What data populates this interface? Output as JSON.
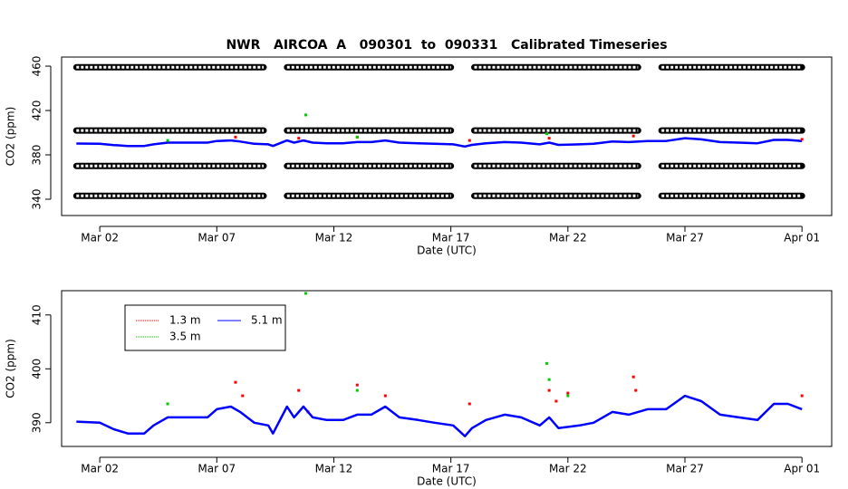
{
  "chart_data": [
    {
      "type": "line",
      "title": "NWR   AIRCOA  A   090301  to  090331   Calibrated Timeseries",
      "x_label": "Date (UTC)",
      "y_label": "CO2 (ppm)",
      "xlim": [
        0.37,
        33.27
      ],
      "ylim": [
        325.3,
        468.2
      ],
      "xticks": [
        {
          "value": 2,
          "label": "Mar 02"
        },
        {
          "value": 7,
          "label": "Mar 07"
        },
        {
          "value": 12,
          "label": "Mar 12"
        },
        {
          "value": 17,
          "label": "Mar 17"
        },
        {
          "value": 22,
          "label": "Mar 22"
        },
        {
          "value": 27,
          "label": "Mar 27"
        },
        {
          "value": 32,
          "label": "Apr 01"
        }
      ],
      "yticks": [
        340,
        380,
        420,
        460
      ],
      "series": [
        {
          "color": "#000000",
          "marker": "circles",
          "x": [
            1,
            2,
            3,
            4,
            5,
            6,
            7,
            8,
            9,
            9.5,
            10,
            11,
            12,
            13,
            14,
            15,
            16,
            17,
            17.5,
            18,
            19,
            20,
            21,
            22,
            23,
            24,
            25,
            25.5,
            26,
            27,
            28,
            29,
            30,
            31,
            32
          ],
          "values": [
            459,
            459,
            459,
            459,
            459,
            459,
            459,
            459,
            459,
            null,
            459,
            459,
            459,
            459,
            459,
            459,
            459,
            459,
            null,
            459,
            459,
            459,
            459,
            459,
            459,
            459,
            459,
            null,
            459,
            459,
            459,
            459,
            459,
            459,
            459
          ]
        },
        {
          "color": "#000000",
          "marker": "circles",
          "x": [
            1,
            2,
            3,
            4,
            5,
            6,
            7,
            8,
            9,
            9.5,
            10,
            11,
            12,
            13,
            14,
            15,
            16,
            17,
            17.5,
            18,
            19,
            20,
            21,
            22,
            23,
            24,
            25,
            25.5,
            26,
            27,
            28,
            29,
            30,
            31,
            32
          ],
          "values": [
            402,
            402,
            402,
            402,
            402,
            402,
            402,
            402,
            402,
            null,
            402,
            402,
            402,
            402,
            402,
            402,
            402,
            402,
            null,
            402,
            402,
            402,
            402,
            402,
            402,
            402,
            402,
            null,
            402,
            402,
            402,
            402,
            402,
            402,
            402
          ]
        },
        {
          "color": "#000000",
          "marker": "circles",
          "x": [
            1,
            2,
            3,
            4,
            5,
            6,
            7,
            8,
            9,
            9.5,
            10,
            11,
            12,
            13,
            14,
            15,
            16,
            17,
            17.5,
            18,
            19,
            20,
            21,
            22,
            23,
            24,
            25,
            25.5,
            26,
            27,
            28,
            29,
            30,
            31,
            32
          ],
          "values": [
            370,
            370,
            370,
            370,
            370,
            370,
            370,
            370,
            370,
            null,
            370,
            370,
            370,
            370,
            370,
            370,
            370,
            370,
            null,
            370,
            370,
            370,
            370,
            370,
            370,
            370,
            370,
            null,
            370,
            370,
            370,
            370,
            370,
            370,
            370
          ]
        },
        {
          "color": "#000000",
          "marker": "circles",
          "x": [
            1,
            2,
            3,
            4,
            5,
            6,
            7,
            8,
            9,
            9.5,
            10,
            11,
            12,
            13,
            14,
            15,
            16,
            17,
            17.5,
            18,
            19,
            20,
            21,
            22,
            23,
            24,
            25,
            25.5,
            26,
            27,
            28,
            29,
            30,
            31,
            32
          ],
          "values": [
            343,
            343,
            343,
            343,
            343,
            343,
            343,
            343,
            343,
            null,
            343,
            343,
            343,
            343,
            343,
            343,
            343,
            343,
            null,
            343,
            343,
            343,
            343,
            343,
            343,
            343,
            343,
            null,
            343,
            343,
            343,
            343,
            343,
            343,
            343
          ]
        },
        {
          "color": "#0000ff",
          "marker": "line",
          "x": [
            1,
            2,
            2.6,
            3.2,
            3.9,
            4.3,
            4.9,
            5.7,
            6.6,
            7,
            7.6,
            8,
            8.6,
            9.2,
            9.4,
            10,
            10.3,
            10.7,
            11.1,
            11.7,
            12.4,
            13,
            13.6,
            14.2,
            14.8,
            15.6,
            16.3,
            17.1,
            17.6,
            17.9,
            18.5,
            19.3,
            20,
            20.8,
            21.2,
            21.6,
            22.5,
            23.1,
            23.9,
            24.6,
            25.4,
            26.2,
            27,
            27.7,
            28.5,
            29.3,
            30.1,
            30.8,
            31.4,
            32
          ],
          "values": [
            390.2,
            390,
            388.8,
            388,
            388,
            389.5,
            391,
            391,
            391,
            392.5,
            393,
            392,
            390,
            389.5,
            388,
            393,
            391,
            393,
            391,
            390.5,
            390.5,
            391.5,
            391.5,
            393,
            391,
            390.5,
            390,
            389.5,
            387.5,
            389,
            390.5,
            391.5,
            391,
            389.5,
            391,
            389,
            389.5,
            390,
            392,
            391.5,
            392.5,
            392.5,
            395,
            394,
            391.5,
            391,
            390.5,
            393.5,
            393.5,
            392.5
          ]
        },
        {
          "color": "#ff0000",
          "marker": "points",
          "x": [
            7.8,
            10.5,
            13,
            17.8,
            21.2,
            24.8,
            32
          ],
          "values": [
            396,
            395,
            396,
            393,
            395,
            397,
            394
          ]
        },
        {
          "color": "#00cd00",
          "marker": "points",
          "x": [
            4.9,
            10.8,
            13,
            21.1
          ],
          "values": [
            393,
            416,
            396,
            399
          ]
        }
      ]
    },
    {
      "type": "line",
      "x_label": "Date (UTC)",
      "y_label": "CO2 (ppm)",
      "legend": "upper left",
      "xlim": [
        0.37,
        33.27
      ],
      "ylim": [
        385.6,
        414.5
      ],
      "xticks": [
        {
          "value": 2,
          "label": "Mar 02"
        },
        {
          "value": 7,
          "label": "Mar 07"
        },
        {
          "value": 12,
          "label": "Mar 12"
        },
        {
          "value": 17,
          "label": "Mar 17"
        },
        {
          "value": 22,
          "label": "Mar 22"
        },
        {
          "value": 27,
          "label": "Mar 27"
        },
        {
          "value": 32,
          "label": "Apr 01"
        }
      ],
      "yticks": [
        390,
        400,
        410
      ],
      "series": [
        {
          "name": "1.3 m",
          "color": "#ff0000",
          "marker": "points",
          "x": [
            7.8,
            8.1,
            10.5,
            10.9,
            13,
            14.2,
            17.8,
            21.2,
            21.5,
            22,
            24.8,
            24.9,
            32
          ],
          "values": [
            397.5,
            395,
            396,
            392,
            397,
            395,
            393.5,
            396,
            394,
            395.5,
            398.5,
            396,
            395
          ]
        },
        {
          "name": "3.5 m",
          "color": "#00cd00",
          "marker": "points",
          "x": [
            4.9,
            10.8,
            13,
            21.1,
            21.2,
            22
          ],
          "values": [
            393.5,
            414,
            396,
            401,
            398,
            395
          ]
        },
        {
          "name": "5.1 m",
          "color": "#0000ff",
          "marker": "line",
          "x": [
            1,
            2,
            2.6,
            3.2,
            3.9,
            4.3,
            4.9,
            5.7,
            6.6,
            7,
            7.6,
            8,
            8.6,
            9.2,
            9.4,
            10,
            10.3,
            10.7,
            11.1,
            11.7,
            12.4,
            13,
            13.6,
            14.2,
            14.8,
            15.6,
            16.3,
            17.1,
            17.6,
            17.9,
            18.5,
            19.3,
            20,
            20.8,
            21.2,
            21.6,
            22.5,
            23.1,
            23.9,
            24.6,
            25.4,
            26.2,
            27,
            27.7,
            28.5,
            29.3,
            30.1,
            30.8,
            31.4,
            32
          ],
          "values": [
            390.2,
            390,
            388.8,
            388,
            388,
            389.5,
            391,
            391,
            391,
            392.5,
            393,
            392,
            390,
            389.5,
            388,
            393,
            391,
            393,
            391,
            390.5,
            390.5,
            391.5,
            391.5,
            393,
            391,
            390.5,
            390,
            389.5,
            387.5,
            389,
            390.5,
            391.5,
            391,
            389.5,
            391,
            389,
            389.5,
            390,
            392,
            391.5,
            392.5,
            392.5,
            395,
            394,
            391.5,
            391,
            390.5,
            393.5,
            393.5,
            392.5
          ]
        }
      ]
    }
  ]
}
